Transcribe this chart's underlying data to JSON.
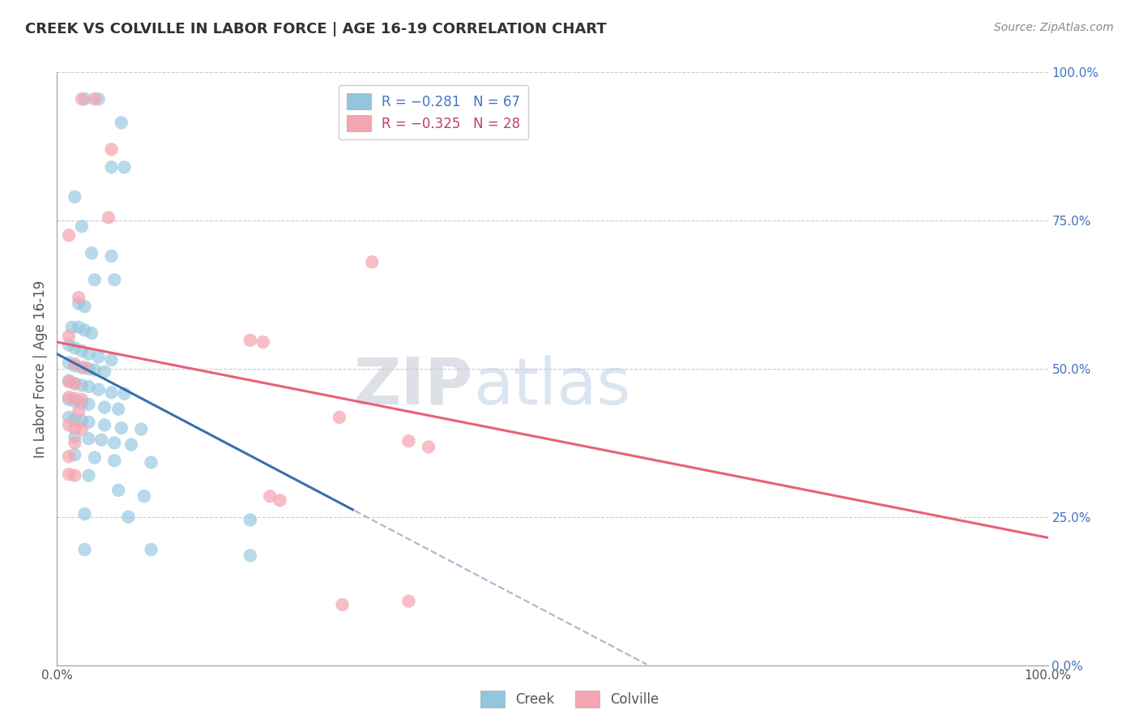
{
  "title": "CREEK VS COLVILLE IN LABOR FORCE | AGE 16-19 CORRELATION CHART",
  "source": "Source: ZipAtlas.com",
  "ylabel": "In Labor Force | Age 16-19",
  "xlim": [
    0.0,
    1.0
  ],
  "ylim": [
    0.0,
    1.0
  ],
  "xticks": [
    0.0,
    1.0
  ],
  "yticks": [
    0.0,
    0.25,
    0.5,
    0.75,
    1.0
  ],
  "creek_color": "#92c5de",
  "colville_color": "#f4a6b0",
  "creek_line_color": "#3a6fad",
  "colville_line_color": "#e8607a",
  "dashed_line_color": "#b0b8d0",
  "watermark_color": "#c8d4e8",
  "background_color": "#ffffff",
  "grid_color": "#cccccc",
  "creek_intercept": 0.525,
  "creek_slope": -0.88,
  "creek_line_x_end": 0.3,
  "colville_intercept": 0.545,
  "colville_slope": -0.33,
  "creek_points": [
    [
      0.028,
      0.955
    ],
    [
      0.042,
      0.955
    ],
    [
      0.065,
      0.915
    ],
    [
      0.055,
      0.84
    ],
    [
      0.068,
      0.84
    ],
    [
      0.018,
      0.79
    ],
    [
      0.025,
      0.74
    ],
    [
      0.035,
      0.695
    ],
    [
      0.055,
      0.69
    ],
    [
      0.038,
      0.65
    ],
    [
      0.058,
      0.65
    ],
    [
      0.022,
      0.61
    ],
    [
      0.028,
      0.605
    ],
    [
      0.015,
      0.57
    ],
    [
      0.022,
      0.57
    ],
    [
      0.028,
      0.565
    ],
    [
      0.035,
      0.56
    ],
    [
      0.012,
      0.54
    ],
    [
      0.018,
      0.535
    ],
    [
      0.025,
      0.53
    ],
    [
      0.032,
      0.525
    ],
    [
      0.042,
      0.52
    ],
    [
      0.055,
      0.515
    ],
    [
      0.012,
      0.51
    ],
    [
      0.018,
      0.505
    ],
    [
      0.025,
      0.502
    ],
    [
      0.032,
      0.5
    ],
    [
      0.038,
      0.498
    ],
    [
      0.048,
      0.495
    ],
    [
      0.012,
      0.48
    ],
    [
      0.018,
      0.475
    ],
    [
      0.025,
      0.472
    ],
    [
      0.032,
      0.47
    ],
    [
      0.042,
      0.465
    ],
    [
      0.055,
      0.46
    ],
    [
      0.068,
      0.458
    ],
    [
      0.012,
      0.448
    ],
    [
      0.018,
      0.445
    ],
    [
      0.025,
      0.442
    ],
    [
      0.032,
      0.44
    ],
    [
      0.048,
      0.435
    ],
    [
      0.062,
      0.432
    ],
    [
      0.012,
      0.418
    ],
    [
      0.018,
      0.415
    ],
    [
      0.025,
      0.412
    ],
    [
      0.032,
      0.41
    ],
    [
      0.048,
      0.405
    ],
    [
      0.065,
      0.4
    ],
    [
      0.085,
      0.398
    ],
    [
      0.018,
      0.385
    ],
    [
      0.032,
      0.382
    ],
    [
      0.045,
      0.38
    ],
    [
      0.058,
      0.375
    ],
    [
      0.075,
      0.372
    ],
    [
      0.018,
      0.355
    ],
    [
      0.038,
      0.35
    ],
    [
      0.058,
      0.345
    ],
    [
      0.095,
      0.342
    ],
    [
      0.032,
      0.32
    ],
    [
      0.062,
      0.295
    ],
    [
      0.088,
      0.285
    ],
    [
      0.028,
      0.255
    ],
    [
      0.072,
      0.25
    ],
    [
      0.195,
      0.245
    ],
    [
      0.028,
      0.195
    ],
    [
      0.095,
      0.195
    ],
    [
      0.195,
      0.185
    ]
  ],
  "colville_points": [
    [
      0.025,
      0.955
    ],
    [
      0.038,
      0.955
    ],
    [
      0.055,
      0.87
    ],
    [
      0.052,
      0.755
    ],
    [
      0.012,
      0.725
    ],
    [
      0.022,
      0.62
    ],
    [
      0.012,
      0.555
    ],
    [
      0.018,
      0.508
    ],
    [
      0.028,
      0.502
    ],
    [
      0.012,
      0.478
    ],
    [
      0.018,
      0.475
    ],
    [
      0.012,
      0.452
    ],
    [
      0.018,
      0.45
    ],
    [
      0.025,
      0.448
    ],
    [
      0.022,
      0.428
    ],
    [
      0.012,
      0.405
    ],
    [
      0.018,
      0.4
    ],
    [
      0.025,
      0.398
    ],
    [
      0.018,
      0.375
    ],
    [
      0.012,
      0.352
    ],
    [
      0.012,
      0.322
    ],
    [
      0.018,
      0.32
    ],
    [
      0.195,
      0.548
    ],
    [
      0.208,
      0.545
    ],
    [
      0.318,
      0.68
    ],
    [
      0.285,
      0.418
    ],
    [
      0.355,
      0.378
    ],
    [
      0.375,
      0.368
    ],
    [
      0.215,
      0.285
    ],
    [
      0.225,
      0.278
    ],
    [
      0.288,
      0.102
    ],
    [
      0.355,
      0.108
    ]
  ]
}
